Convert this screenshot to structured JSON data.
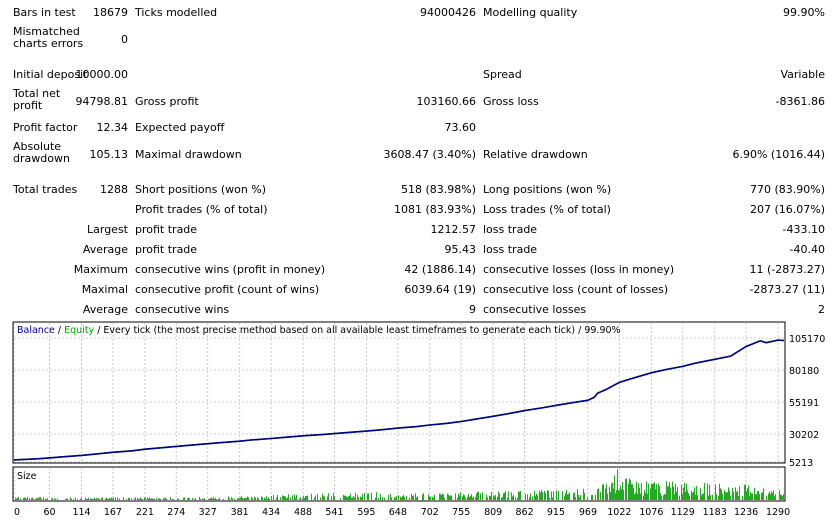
{
  "report": {
    "bars_in_test": {
      "label": "Bars in test",
      "value": "18679"
    },
    "ticks_modelled": {
      "label": "Ticks modelled",
      "value": "94000426"
    },
    "modelling_quality": {
      "label": "Modelling quality",
      "value": "99.90%"
    },
    "mismatched_errors": {
      "label": "Mismatched charts errors",
      "value": "0"
    },
    "initial_deposit": {
      "label": "Initial deposit",
      "value": "10000.00"
    },
    "spread": {
      "label": "Spread",
      "value": "Variable"
    },
    "total_net_profit": {
      "label": "Total net profit",
      "value": "94798.81"
    },
    "gross_profit": {
      "label": "Gross profit",
      "value": "103160.66"
    },
    "gross_loss": {
      "label": "Gross loss",
      "value": "-8361.86"
    },
    "profit_factor": {
      "label": "Profit factor",
      "value": "12.34"
    },
    "expected_payoff": {
      "label": "Expected payoff",
      "value": "73.60"
    },
    "absolute_drawdown": {
      "label": "Absolute drawdown",
      "value": "105.13"
    },
    "maximal_drawdown": {
      "label": "Maximal drawdown",
      "value": "3608.47 (3.40%)"
    },
    "relative_drawdown": {
      "label": "Relative drawdown",
      "value": "6.90% (1016.44)"
    },
    "total_trades": {
      "label": "Total trades",
      "value": "1288"
    },
    "short_positions": {
      "label": "Short positions (won %)",
      "value": "518 (83.98%)"
    },
    "long_positions": {
      "label": "Long positions (won %)",
      "value": "770 (83.90%)"
    },
    "profit_trades": {
      "label": "Profit trades (% of total)",
      "value": "1081 (83.93%)"
    },
    "loss_trades": {
      "label": "Loss trades (% of total)",
      "value": "207 (16.07%)"
    },
    "largest": {
      "label": "Largest",
      "profit_label": "profit trade",
      "profit_value": "1212.57",
      "loss_label": "loss trade",
      "loss_value": "-433.10"
    },
    "average": {
      "label": "Average",
      "profit_label": "profit trade",
      "profit_value": "95.43",
      "loss_label": "loss trade",
      "loss_value": "-40.40"
    },
    "maximum": {
      "label": "Maximum",
      "wins_label": "consecutive wins (profit in money)",
      "wins_value": "42 (1886.14)",
      "losses_label": "consecutive losses (loss in money)",
      "losses_value": "11 (-2873.27)"
    },
    "maximal": {
      "label": "Maximal",
      "profit_label": "consecutive profit (count of wins)",
      "profit_value": "6039.64 (19)",
      "loss_label": "consecutive loss (count of losses)",
      "loss_value": "-2873.27 (11)"
    },
    "average_consec": {
      "label": "Average",
      "wins_label": "consecutive wins",
      "wins_value": "9",
      "losses_label": "consecutive losses",
      "losses_value": "2"
    }
  },
  "colors": {
    "balance": "#00008b",
    "equity": "#00a000",
    "size": "#22aa22",
    "grid": "#c8c8c8",
    "axis": "#000000"
  },
  "chart_data": [
    {
      "type": "line",
      "legend_balance": "Balance",
      "legend_sep1": " / ",
      "legend_equity": "Equity",
      "legend_rest": " / Every tick (the most precise method based on all available least timeframes to generate each tick) / 99.90%",
      "yticks": [
        "105170",
        "80180",
        "55191",
        "30202",
        "5213"
      ],
      "ytick_values": [
        105170,
        80180,
        55191,
        30202,
        5213
      ],
      "ylim": [
        5213,
        105170
      ],
      "xlim": [
        0,
        1300
      ],
      "x": [
        0,
        40,
        60,
        80,
        114,
        140,
        167,
        200,
        221,
        250,
        274,
        300,
        327,
        350,
        381,
        400,
        434,
        460,
        488,
        520,
        541,
        570,
        595,
        620,
        648,
        680,
        702,
        730,
        755,
        780,
        809,
        840,
        862,
        890,
        915,
        940,
        969,
        980,
        985,
        1000,
        1022,
        1050,
        1076,
        1100,
        1129,
        1150,
        1183,
        1210,
        1236,
        1260,
        1270,
        1290,
        1300
      ],
      "balance": [
        10000,
        10800,
        11500,
        12300,
        13500,
        14700,
        15900,
        17100,
        18300,
        19500,
        20500,
        21500,
        22600,
        23500,
        24600,
        25500,
        26700,
        27700,
        28800,
        29700,
        30500,
        31600,
        32500,
        33500,
        34800,
        36000,
        37200,
        38500,
        40000,
        41800,
        44000,
        46500,
        48500,
        50500,
        52500,
        54500,
        56500,
        59000,
        62000,
        65000,
        70500,
        74500,
        78000,
        80500,
        83000,
        85500,
        88500,
        91000,
        98500,
        103000,
        101500,
        103500,
        103200
      ],
      "equity": [
        10000,
        10800,
        11500,
        12300,
        13500,
        14700,
        15900,
        17100,
        18300,
        19500,
        20500,
        21500,
        22600,
        23500,
        24600,
        25500,
        26700,
        27700,
        28800,
        29700,
        30500,
        31600,
        32500,
        33500,
        34800,
        36000,
        37200,
        38500,
        40000,
        41800,
        44000,
        46500,
        48500,
        50500,
        52500,
        54500,
        56500,
        59000,
        62000,
        65000,
        70500,
        74500,
        78000,
        80500,
        83000,
        85500,
        88500,
        91000,
        98500,
        103000,
        101500,
        103500,
        103200
      ]
    },
    {
      "type": "bar",
      "title": "Size",
      "xticks": [
        "0",
        "60",
        "114",
        "167",
        "221",
        "274",
        "327",
        "381",
        "434",
        "488",
        "541",
        "595",
        "648",
        "702",
        "755",
        "809",
        "862",
        "915",
        "969",
        "1022",
        "1076",
        "1129",
        "1183",
        "1236",
        "1290"
      ],
      "xtick_values": [
        0,
        60,
        114,
        167,
        221,
        274,
        327,
        381,
        434,
        488,
        541,
        595,
        648,
        702,
        755,
        809,
        862,
        915,
        969,
        1022,
        1076,
        1129,
        1183,
        1236,
        1290
      ],
      "size_profile_x": [
        0,
        100,
        200,
        300,
        400,
        500,
        560,
        700,
        800,
        900,
        980,
        1000,
        1020,
        1040,
        1100,
        1200,
        1250,
        1300
      ],
      "size_profile_y": [
        0.1,
        0.08,
        0.08,
        0.1,
        0.12,
        0.2,
        0.25,
        0.2,
        0.25,
        0.3,
        0.35,
        0.55,
        0.95,
        0.6,
        0.55,
        0.5,
        0.45,
        0.25
      ]
    }
  ]
}
